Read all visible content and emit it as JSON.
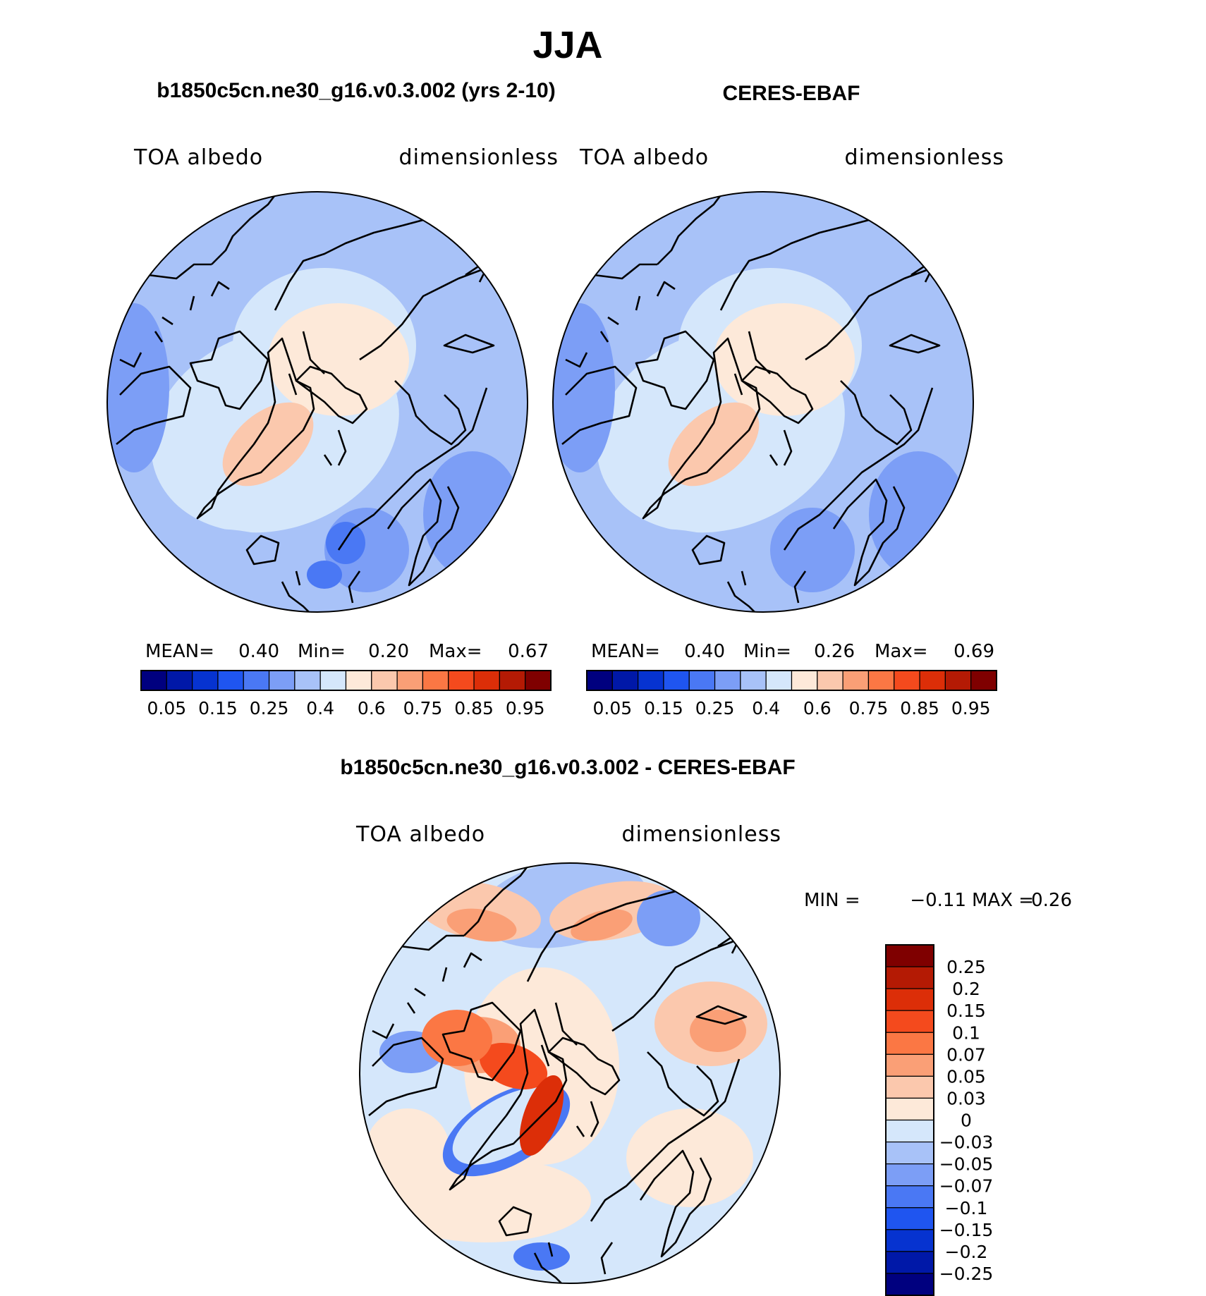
{
  "chart_data": [
    {
      "type": "heatmap",
      "title": "b1850c5cn.ne30_g16.v0.3.002 (yrs 2-10)",
      "variable_label": "TOA albedo",
      "units_label": "dimensionless",
      "projection": "north polar stereographic",
      "stats": {
        "mean_label": "MEAN=",
        "mean": "0.40",
        "min_label": "Min=",
        "min": "0.20",
        "max_label": "Max=",
        "max": "0.67"
      }
    },
    {
      "type": "heatmap",
      "title": "CERES-EBAF",
      "variable_label": "TOA albedo",
      "units_label": "dimensionless",
      "projection": "north polar stereographic",
      "stats": {
        "mean_label": "MEAN=",
        "mean": "0.40",
        "min_label": "Min=",
        "min": "0.26",
        "max_label": "Max=",
        "max": "0.69"
      }
    },
    {
      "type": "heatmap",
      "title": "b1850c5cn.ne30_g16.v0.3.002 - CERES-EBAF",
      "variable_label": "TOA albedo",
      "units_label": "dimensionless",
      "projection": "north polar stereographic",
      "stats": {
        "min_label": "MIN =",
        "min": "−0.11",
        "max_label": "MAX =",
        "max": "0.26"
      }
    }
  ],
  "figure": {
    "season_title": "JJA"
  },
  "colorbar_main": {
    "colors": [
      "#00007f",
      "#0018a8",
      "#0633d0",
      "#1f55f0",
      "#4a78f4",
      "#7c9ef6",
      "#a8c2f8",
      "#d5e7fb",
      "#fde9d9",
      "#fbc8ad",
      "#fa9f76",
      "#fb7744",
      "#f44a1d",
      "#dc2e08",
      "#b41a04",
      "#7f0000"
    ],
    "tick_labels": [
      "0.05",
      "0.15",
      "0.25",
      "0.4",
      "0.6",
      "0.75",
      "0.85",
      "0.95"
    ]
  },
  "colorbar_diff": {
    "colors": [
      "#7f0000",
      "#b41a04",
      "#dc2e08",
      "#f44a1d",
      "#fb7744",
      "#fa9f76",
      "#fbc8ad",
      "#fde9d9",
      "#d5e7fb",
      "#a8c2f8",
      "#7c9ef6",
      "#4a78f4",
      "#1f55f0",
      "#0633d0",
      "#0018a8",
      "#00007f"
    ],
    "tick_labels": [
      "0.25",
      "0.2",
      "0.15",
      "0.1",
      "0.07",
      "0.05",
      "0.03",
      "0",
      "−0.03",
      "−0.05",
      "−0.07",
      "−0.1",
      "−0.15",
      "−0.2",
      "−0.25"
    ]
  }
}
